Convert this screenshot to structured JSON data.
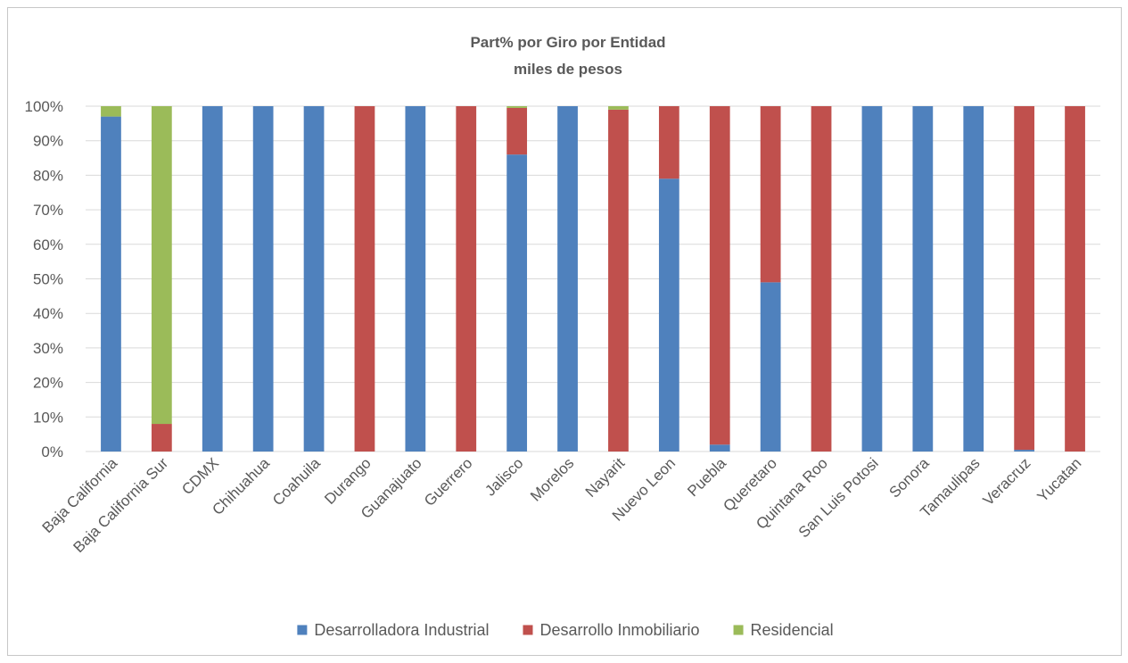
{
  "chart_data": {
    "type": "bar",
    "stacked": true,
    "percent_stacked": true,
    "title": "Part% por Giro  por Entidad",
    "subtitle": "miles de pesos",
    "xlabel": "",
    "ylabel": "",
    "ylim": [
      0,
      100
    ],
    "y_ticks": [
      "0%",
      "10%",
      "20%",
      "30%",
      "40%",
      "50%",
      "60%",
      "70%",
      "80%",
      "90%",
      "100%"
    ],
    "grid": true,
    "legend_position": "bottom",
    "categories": [
      "Baja California",
      "Baja California Sur",
      "CDMX",
      "Chihuahua",
      "Coahuila",
      "Durango",
      "Guanajuato",
      "Guerrero",
      "Jalisco",
      "Morelos",
      "Nayarit",
      "Nuevo Leon",
      "Puebla",
      "Queretaro",
      "Quintana Roo",
      "San Luis Potosi",
      "Sonora",
      "Tamaulipas",
      "Veracruz",
      "Yucatan"
    ],
    "series": [
      {
        "name": "Desarrolladora  Industrial",
        "color": "#4f81bd",
        "values": [
          97,
          0,
          100,
          100,
          100,
          0,
          100,
          0,
          86,
          100,
          0,
          79,
          2,
          49,
          0,
          100,
          100,
          100,
          0.5,
          0
        ]
      },
      {
        "name": "Desarrollo Inmobiliario",
        "color": "#c0504d",
        "values": [
          0,
          8,
          0,
          0,
          0,
          100,
          0,
          100,
          13.5,
          0,
          99,
          21,
          98,
          51,
          100,
          0,
          0,
          0,
          99.5,
          100
        ]
      },
      {
        "name": "Residencial",
        "color": "#9bbb59",
        "values": [
          3,
          92,
          0,
          0,
          0,
          0,
          0,
          0,
          0.5,
          0,
          1,
          0,
          0,
          0,
          0,
          0,
          0,
          0,
          0,
          0
        ]
      }
    ]
  }
}
